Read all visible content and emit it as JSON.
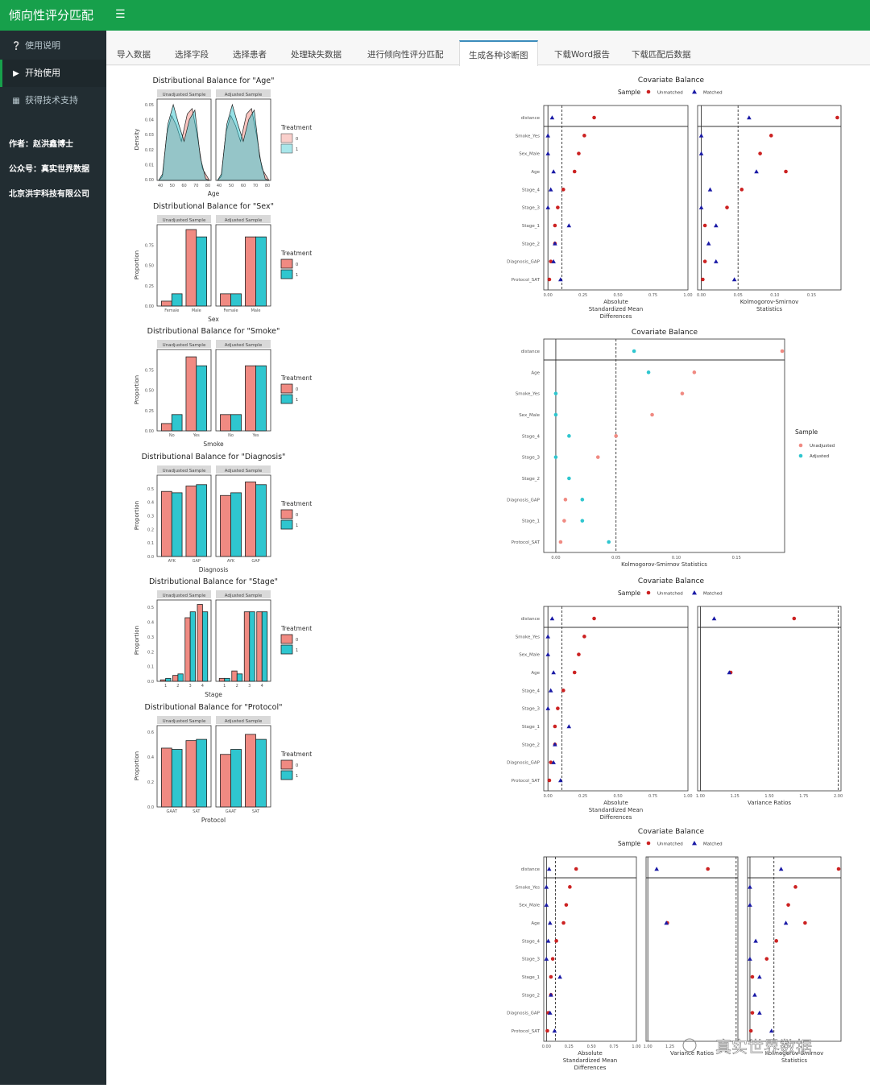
{
  "app": {
    "title": "倾向性评分匹配",
    "menu_icon": "hamburger-icon"
  },
  "sidebar": {
    "items": [
      {
        "label": "使用说明",
        "icon": "question-circle-icon"
      },
      {
        "label": "开始使用",
        "icon": "play-icon",
        "active": true
      },
      {
        "label": "获得技术支持",
        "icon": "qrcode-icon"
      }
    ],
    "author": "作者：赵洪鑫博士",
    "wechat": "公众号：真实世界数据",
    "company": "北京洪宇科技有限公司"
  },
  "tabs": [
    "导入数据",
    "选择字段",
    "选择患者",
    "处理缺失数据",
    "进行倾向性评分匹配",
    "生成各种诊断图",
    "下载Word报告",
    "下载匹配后数据"
  ],
  "active_tab": "生成各种诊断图",
  "watermark": "真实世界数据",
  "colors": {
    "brand": "#17a04b",
    "sidebar": "#222d32",
    "salmon": "#f08a82",
    "teal": "#2fc6cf",
    "unmatched": "#cc2222",
    "matched": "#1a1aa6"
  },
  "chart_data": [
    {
      "type": "area",
      "title": "Distributional Balance for \"Age\"",
      "xlabel": "Age",
      "ylabel": "Density",
      "facets": [
        "Unadjusted Sample",
        "Adjusted Sample"
      ],
      "legend_title": "Treatment",
      "legend": [
        "0",
        "1"
      ],
      "xticks": [
        "40",
        "50",
        "60",
        "70",
        "80"
      ],
      "yticks": [
        "0.00",
        "0.01",
        "0.02",
        "0.03",
        "0.04",
        "0.05"
      ]
    },
    {
      "type": "bar",
      "title": "Distributional Balance for \"Sex\"",
      "xlabel": "Sex",
      "ylabel": "Proportion",
      "facets": [
        "Unadjusted Sample",
        "Adjusted Sample"
      ],
      "legend_title": "Treatment",
      "legend": [
        "0",
        "1"
      ],
      "categories": [
        "Female",
        "Male"
      ],
      "ylim": [
        0,
        1
      ],
      "yticks": [
        "0.00",
        "0.25",
        "0.50",
        "0.75"
      ],
      "series": [
        {
          "name": "0",
          "unadjusted": [
            0.06,
            0.94
          ],
          "adjusted": [
            0.15,
            0.85
          ]
        },
        {
          "name": "1",
          "unadjusted": [
            0.15,
            0.85
          ],
          "adjusted": [
            0.15,
            0.85
          ]
        }
      ]
    },
    {
      "type": "bar",
      "title": "Distributional Balance for \"Smoke\"",
      "xlabel": "Smoke",
      "ylabel": "Proportion",
      "facets": [
        "Unadjusted Sample",
        "Adjusted Sample"
      ],
      "legend_title": "Treatment",
      "legend": [
        "0",
        "1"
      ],
      "categories": [
        "No",
        "Yes"
      ],
      "ylim": [
        0,
        1
      ],
      "yticks": [
        "0.00",
        "0.25",
        "0.50",
        "0.75"
      ],
      "series": [
        {
          "name": "0",
          "unadjusted": [
            0.09,
            0.91
          ],
          "adjusted": [
            0.2,
            0.8
          ]
        },
        {
          "name": "1",
          "unadjusted": [
            0.2,
            0.8
          ],
          "adjusted": [
            0.2,
            0.8
          ]
        }
      ]
    },
    {
      "type": "bar",
      "title": "Distributional Balance for \"Diagnosis\"",
      "xlabel": "Diagnosis",
      "ylabel": "Proportion",
      "facets": [
        "Unadjusted Sample",
        "Adjusted Sample"
      ],
      "legend_title": "Treatment",
      "legend": [
        "0",
        "1"
      ],
      "categories": [
        "AYK",
        "GAP"
      ],
      "ylim": [
        0,
        0.6
      ],
      "yticks": [
        "0.0",
        "0.1",
        "0.2",
        "0.3",
        "0.4",
        "0.5"
      ],
      "series": [
        {
          "name": "0",
          "unadjusted": [
            0.48,
            0.52
          ],
          "adjusted": [
            0.45,
            0.55
          ]
        },
        {
          "name": "1",
          "unadjusted": [
            0.47,
            0.53
          ],
          "adjusted": [
            0.47,
            0.53
          ]
        }
      ]
    },
    {
      "type": "bar",
      "title": "Distributional Balance for \"Stage\"",
      "xlabel": "Stage",
      "ylabel": "Proportion",
      "facets": [
        "Unadjusted Sample",
        "Adjusted Sample"
      ],
      "legend_title": "Treatment",
      "legend": [
        "0",
        "1"
      ],
      "categories": [
        "1",
        "2",
        "3",
        "4"
      ],
      "ylim": [
        0,
        0.55
      ],
      "yticks": [
        "0.0",
        "0.1",
        "0.2",
        "0.3",
        "0.4",
        "0.5"
      ],
      "series": [
        {
          "name": "0",
          "unadjusted": [
            0.01,
            0.04,
            0.43,
            0.52
          ],
          "adjusted": [
            0.02,
            0.07,
            0.47,
            0.47
          ]
        },
        {
          "name": "1",
          "unadjusted": [
            0.02,
            0.05,
            0.47,
            0.47
          ],
          "adjusted": [
            0.02,
            0.05,
            0.47,
            0.47
          ]
        }
      ]
    },
    {
      "type": "bar",
      "title": "Distributional Balance for \"Protocol\"",
      "xlabel": "Protocol",
      "ylabel": "Proportion",
      "facets": [
        "Unadjusted Sample",
        "Adjusted Sample"
      ],
      "legend_title": "Treatment",
      "legend": [
        "0",
        "1"
      ],
      "categories": [
        "GAAT",
        "SAT"
      ],
      "ylim": [
        0,
        0.65
      ],
      "yticks": [
        "0.0",
        "0.2",
        "0.4",
        "0.6"
      ],
      "series": [
        {
          "name": "0",
          "unadjusted": [
            0.47,
            0.53
          ],
          "adjusted": [
            0.42,
            0.58
          ]
        },
        {
          "name": "1",
          "unadjusted": [
            0.46,
            0.54
          ],
          "adjusted": [
            0.46,
            0.54
          ]
        }
      ]
    },
    {
      "type": "scatter",
      "title": "Covariate Balance",
      "legend_title": "Sample",
      "legend": [
        "Unmatched",
        "Matched"
      ],
      "covariates": [
        "distance",
        "Smoke_Yes",
        "Sex_Male",
        "Age",
        "Stage_4",
        "Stage_3",
        "Stage_1",
        "Stage_2",
        "Diagnosis_GAP",
        "Protocol_SAT"
      ],
      "panels": [
        {
          "xlabel": [
            "Absolute",
            "Standardized Mean",
            "Differences"
          ],
          "xlim": [
            -0.03,
            1.0
          ],
          "xticks": [
            "0.00",
            "0.25",
            "0.50",
            "0.75",
            "1.00"
          ],
          "threshold": 0.1,
          "zero_line": 0,
          "unmatched": [
            0.33,
            0.26,
            0.22,
            0.19,
            0.11,
            0.07,
            0.05,
            0.05,
            0.02,
            0.01
          ],
          "matched": [
            0.03,
            0.0,
            0.0,
            0.04,
            0.02,
            0.0,
            0.15,
            0.05,
            0.04,
            0.09
          ]
        },
        {
          "xlabel": [
            "Kolmogorov-Smirnov",
            "Statistics"
          ],
          "xlim": [
            -0.005,
            0.19
          ],
          "xticks": [
            "0.00",
            "0.05",
            "0.10",
            "0.15"
          ],
          "threshold": 0.05,
          "zero_line": 0,
          "unmatched": [
            0.185,
            0.095,
            0.08,
            0.115,
            0.055,
            0.035,
            0.005,
            null,
            0.005,
            0.002
          ],
          "matched": [
            0.065,
            0.0,
            0.0,
            0.075,
            0.012,
            0.0,
            0.02,
            0.01,
            0.02,
            0.045
          ]
        }
      ]
    },
    {
      "type": "scatter",
      "title": "Covariate Balance",
      "legend_title": "Sample",
      "legend": [
        "Unadjusted",
        "Adjusted"
      ],
      "covariates": [
        "distance",
        "Age",
        "Smoke_Yes",
        "Sex_Male",
        "Stage_4",
        "Stage_3",
        "Stage_2",
        "Diagnosis_GAP",
        "Stage_1",
        "Protocol_SAT"
      ],
      "xlabel": "Kolmogorov-Smirnov Statistics",
      "xlim": [
        -0.01,
        0.19
      ],
      "xticks": [
        "0.00",
        "0.05",
        "0.10",
        "0.15"
      ],
      "threshold": 0.05,
      "zero_line": 0,
      "unadjusted": [
        0.188,
        0.115,
        0.105,
        0.08,
        0.05,
        0.035,
        null,
        0.008,
        0.007,
        0.004
      ],
      "adjusted": [
        0.065,
        0.077,
        0.0,
        0.0,
        0.011,
        0.0,
        0.011,
        0.022,
        0.022,
        0.044
      ]
    },
    {
      "type": "scatter",
      "title": "Covariate Balance",
      "legend_title": "Sample",
      "legend": [
        "Unmatched",
        "Matched"
      ],
      "covariates": [
        "distance",
        "Smoke_Yes",
        "Sex_Male",
        "Age",
        "Stage_4",
        "Stage_3",
        "Stage_1",
        "Stage_2",
        "Diagnosis_GAP",
        "Protocol_SAT"
      ],
      "panels": [
        {
          "xlabel": [
            "Absolute",
            "Standardized Mean",
            "Differences"
          ],
          "xlim": [
            -0.03,
            1.0
          ],
          "xticks": [
            "0.00",
            "0.25",
            "0.50",
            "0.75",
            "1.00"
          ],
          "threshold": 0.1,
          "zero_line": 0,
          "unmatched": [
            0.33,
            0.26,
            0.22,
            0.19,
            0.11,
            0.07,
            0.05,
            0.05,
            0.02,
            0.01
          ],
          "matched": [
            0.03,
            0.0,
            0.0,
            0.04,
            0.02,
            0.0,
            0.15,
            0.05,
            0.04,
            0.09
          ]
        },
        {
          "xlabel": [
            "Variance Ratios"
          ],
          "xlim": [
            0.98,
            2.02
          ],
          "xticks": [
            "1.00",
            "1.25",
            "1.50",
            "1.75",
            "2.00"
          ],
          "threshold": 2.0,
          "zero_line": 1.0,
          "unmatched": [
            1.68,
            null,
            null,
            1.22,
            null,
            null,
            null,
            null,
            null,
            null
          ],
          "matched": [
            1.1,
            null,
            null,
            1.21,
            null,
            null,
            null,
            null,
            null,
            null
          ]
        }
      ]
    },
    {
      "type": "scatter",
      "title": "Covariate Balance",
      "legend_title": "Sample",
      "legend": [
        "Unmatched",
        "Matched"
      ],
      "covariates": [
        "distance",
        "Smoke_Yes",
        "Sex_Male",
        "Age",
        "Stage_4",
        "Stage_3",
        "Stage_1",
        "Stage_2",
        "Diagnosis_GAP",
        "Protocol_SAT"
      ],
      "panels": [
        {
          "xlabel": [
            "Absolute",
            "Standardized Mean",
            "Differences"
          ],
          "xlim": [
            -0.03,
            1.0
          ],
          "xticks": [
            "0.00",
            "0.25",
            "0.50",
            "0.75",
            "1.00"
          ],
          "threshold": 0.1,
          "zero_line": 0,
          "unmatched": [
            0.33,
            0.26,
            0.22,
            0.19,
            0.11,
            0.07,
            0.05,
            0.05,
            0.02,
            0.01
          ],
          "matched": [
            0.03,
            0.0,
            0.0,
            0.04,
            0.02,
            0.0,
            0.15,
            0.05,
            0.04,
            0.09
          ]
        },
        {
          "xlabel": [
            "Variance Ratios"
          ],
          "xlim": [
            0.98,
            2.02
          ],
          "xticks": [
            "1.00",
            "1.25"
          ],
          "threshold": 2.0,
          "zero_line": 1.0,
          "unmatched": [
            1.68,
            null,
            null,
            1.22,
            null,
            null,
            null,
            null,
            null,
            null
          ],
          "matched": [
            1.1,
            null,
            null,
            1.21,
            null,
            null,
            null,
            null,
            null,
            null
          ]
        },
        {
          "xlabel": [
            "Kolmogorov-Smirnov",
            "Statistics"
          ],
          "xlim": [
            -0.005,
            0.19
          ],
          "xticks": [],
          "threshold": 0.05,
          "zero_line": 0,
          "unmatched": [
            0.185,
            0.095,
            0.08,
            0.115,
            0.055,
            0.035,
            0.005,
            null,
            0.005,
            0.002
          ],
          "matched": [
            0.065,
            0.0,
            0.0,
            0.075,
            0.012,
            0.0,
            0.02,
            0.01,
            0.02,
            0.045
          ]
        }
      ]
    }
  ]
}
